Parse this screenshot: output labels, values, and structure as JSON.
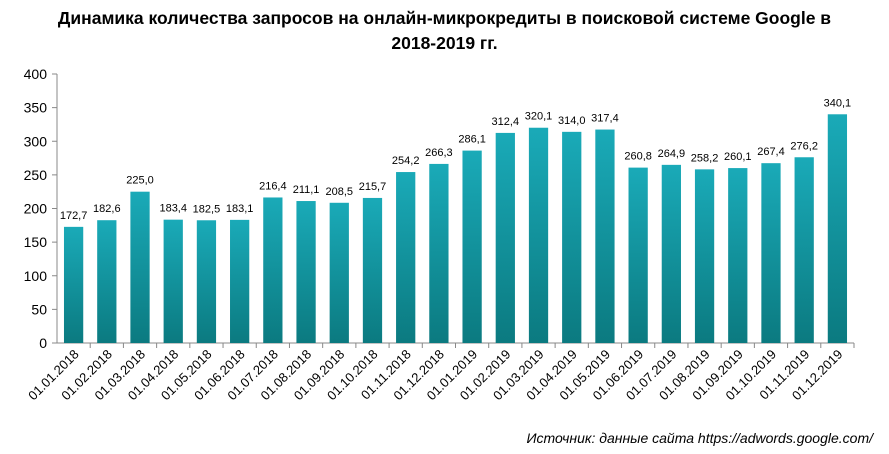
{
  "chart_data": {
    "type": "bar",
    "title_line1": "Динамика количества запросов на онлайн-микрокредиты в поисковой системе Google в",
    "title_line2": "2018-2019 гг.",
    "xlabel": "",
    "ylabel": "",
    "ylim": [
      0,
      400
    ],
    "yticks": [
      0,
      50,
      100,
      150,
      200,
      250,
      300,
      350,
      400
    ],
    "grid": false,
    "categories": [
      "01.01.2018",
      "01.02.2018",
      "01.03.2018",
      "01.04.2018",
      "01.05.2018",
      "01.06.2018",
      "01.07.2018",
      "01.08.2018",
      "01.09.2018",
      "01.10.2018",
      "01.11.2018",
      "01.12.2018",
      "01.01.2019",
      "01.02.2019",
      "01.03.2019",
      "01.04.2019",
      "01.05.2019",
      "01.06.2019",
      "01.07.2019",
      "01.08.2019",
      "01.09.2019",
      "01.10.2019",
      "01.11.2019",
      "01.12.2019"
    ],
    "values": [
      172.7,
      182.6,
      225.0,
      183.4,
      182.5,
      183.1,
      216.4,
      211.1,
      208.5,
      215.7,
      254.2,
      266.3,
      286.1,
      312.4,
      320.1,
      314.0,
      317.4,
      260.8,
      264.9,
      258.2,
      260.1,
      267.4,
      276.2,
      340.1
    ],
    "data_labels": [
      "172,7",
      "182,6",
      "225,0",
      "183,4",
      "182,5",
      "183,1",
      "216,4",
      "211,1",
      "208,5",
      "215,7",
      "254,2",
      "266,3",
      "286,1",
      "312,4",
      "320,1",
      "314,0",
      "317,4",
      "260,8",
      "264,9",
      "258,2",
      "260,1",
      "267,4",
      "276,2",
      "340,1"
    ],
    "bar_color_top": "#1aaab8",
    "bar_color_bottom": "#0b7a80"
  },
  "source_text": "Источник: данные сайта https://adwords.google.com/"
}
